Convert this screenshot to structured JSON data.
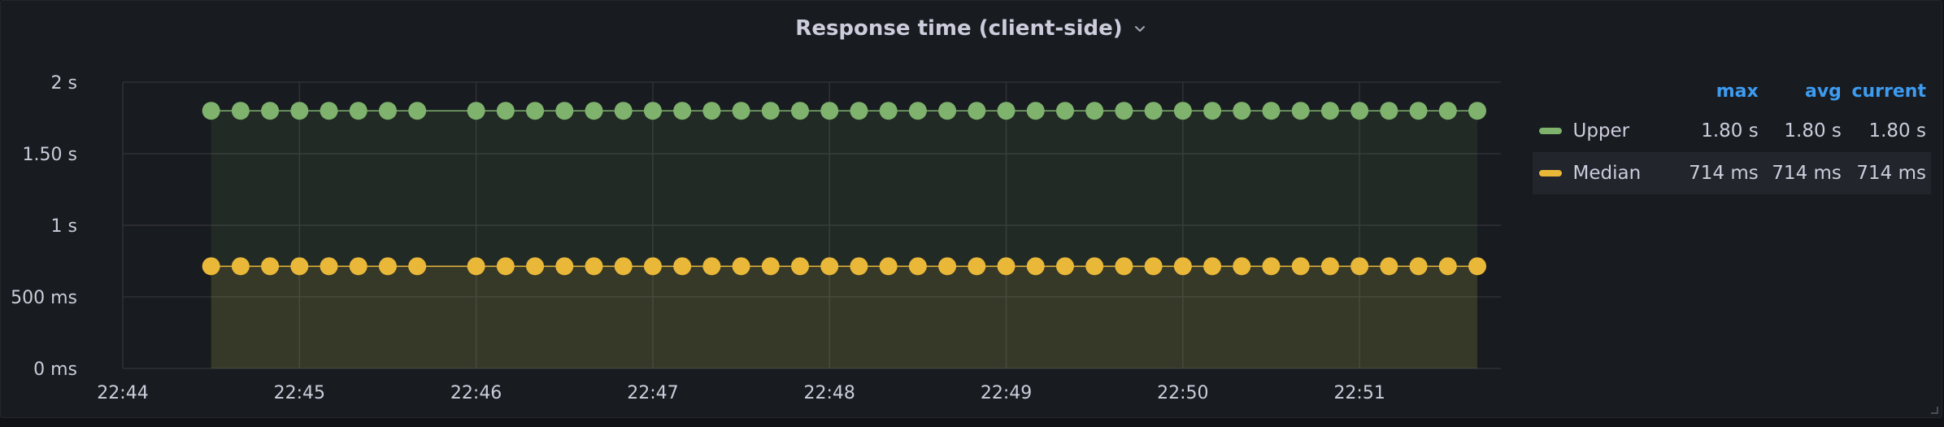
{
  "panel": {
    "title": "Response time (client-side)",
    "menu_icon": "chevron-down-icon",
    "resize_icon": "resize-handle-icon"
  },
  "colors": {
    "upper": "#7eb26d",
    "median": "#eab839",
    "grid": "#2f3137",
    "axis_text": "#ccccdc",
    "legend_header": "#3d9bf0",
    "panel_bg": "#181b1f"
  },
  "legend": {
    "headers": {
      "max": "max",
      "avg": "avg",
      "current": "current"
    },
    "rows": [
      {
        "name": "Upper",
        "color": "#7eb26d",
        "max": "1.80 s",
        "avg": "1.80 s",
        "current": "1.80 s"
      },
      {
        "name": "Median",
        "color": "#eab839",
        "max": "714 ms",
        "avg": "714 ms",
        "current": "714 ms"
      }
    ]
  },
  "chart_data": {
    "type": "line",
    "title": "Response time (client-side)",
    "grid": true,
    "legend_position": "right",
    "y_unit": "seconds",
    "ylim": [
      0,
      2
    ],
    "y_ticks": [
      {
        "value": 0,
        "label": "0 ms"
      },
      {
        "value": 0.5,
        "label": "500 ms"
      },
      {
        "value": 1,
        "label": "1 s"
      },
      {
        "value": 1.5,
        "label": "1.50 s"
      },
      {
        "value": 2,
        "label": "2 s"
      }
    ],
    "x_unit": "time (HH:MM)",
    "xlim": [
      "22:44:00",
      "22:51:48"
    ],
    "x_ticks": [
      "22:44",
      "22:45",
      "22:46",
      "22:47",
      "22:48",
      "22:49",
      "22:50",
      "22:51"
    ],
    "series": [
      {
        "name": "Upper",
        "color": "#7eb26d",
        "fill": true,
        "points": true,
        "value": 1.8,
        "x": [
          "22:44:30",
          "22:44:40",
          "22:44:50",
          "22:45:00",
          "22:45:10",
          "22:45:20",
          "22:45:30",
          "22:45:40",
          "22:46:00",
          "22:46:10",
          "22:46:20",
          "22:46:30",
          "22:46:40",
          "22:46:50",
          "22:47:00",
          "22:47:10",
          "22:47:20",
          "22:47:30",
          "22:47:40",
          "22:47:50",
          "22:48:00",
          "22:48:10",
          "22:48:20",
          "22:48:30",
          "22:48:40",
          "22:48:50",
          "22:49:00",
          "22:49:10",
          "22:49:20",
          "22:49:30",
          "22:49:40",
          "22:49:50",
          "22:50:00",
          "22:50:10",
          "22:50:20",
          "22:50:30",
          "22:50:40",
          "22:50:50",
          "22:51:00",
          "22:51:10",
          "22:51:20",
          "22:51:30",
          "22:51:40"
        ],
        "y": [
          1.8,
          1.8,
          1.8,
          1.8,
          1.8,
          1.8,
          1.8,
          1.8,
          1.8,
          1.8,
          1.8,
          1.8,
          1.8,
          1.8,
          1.8,
          1.8,
          1.8,
          1.8,
          1.8,
          1.8,
          1.8,
          1.8,
          1.8,
          1.8,
          1.8,
          1.8,
          1.8,
          1.8,
          1.8,
          1.8,
          1.8,
          1.8,
          1.8,
          1.8,
          1.8,
          1.8,
          1.8,
          1.8,
          1.8,
          1.8,
          1.8,
          1.8,
          1.8
        ]
      },
      {
        "name": "Median",
        "color": "#eab839",
        "fill": true,
        "points": true,
        "value": 0.714,
        "x": [
          "22:44:30",
          "22:44:40",
          "22:44:50",
          "22:45:00",
          "22:45:10",
          "22:45:20",
          "22:45:30",
          "22:45:40",
          "22:46:00",
          "22:46:10",
          "22:46:20",
          "22:46:30",
          "22:46:40",
          "22:46:50",
          "22:47:00",
          "22:47:10",
          "22:47:20",
          "22:47:30",
          "22:47:40",
          "22:47:50",
          "22:48:00",
          "22:48:10",
          "22:48:20",
          "22:48:30",
          "22:48:40",
          "22:48:50",
          "22:49:00",
          "22:49:10",
          "22:49:20",
          "22:49:30",
          "22:49:40",
          "22:49:50",
          "22:50:00",
          "22:50:10",
          "22:50:20",
          "22:50:30",
          "22:50:40",
          "22:50:50",
          "22:51:00",
          "22:51:10",
          "22:51:20",
          "22:51:30",
          "22:51:40"
        ],
        "y": [
          0.714,
          0.714,
          0.714,
          0.714,
          0.714,
          0.714,
          0.714,
          0.714,
          0.714,
          0.714,
          0.714,
          0.714,
          0.714,
          0.714,
          0.714,
          0.714,
          0.714,
          0.714,
          0.714,
          0.714,
          0.714,
          0.714,
          0.714,
          0.714,
          0.714,
          0.714,
          0.714,
          0.714,
          0.714,
          0.714,
          0.714,
          0.714,
          0.714,
          0.714,
          0.714,
          0.714,
          0.714,
          0.714,
          0.714,
          0.714,
          0.714,
          0.714,
          0.714
        ]
      }
    ]
  }
}
